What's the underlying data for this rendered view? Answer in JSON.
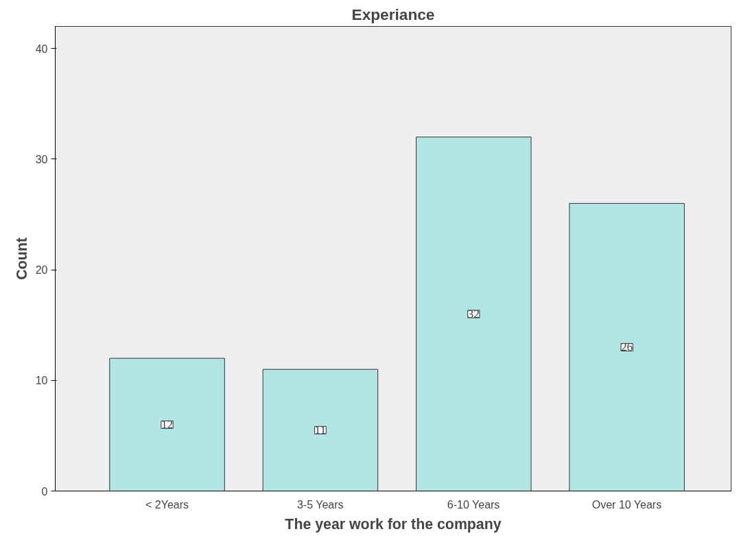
{
  "chart_data": {
    "type": "bar",
    "title": "Experiance",
    "xlabel": "The year work for the company",
    "ylabel": "Count",
    "categories": [
      "< 2Years",
      "3-5 Years",
      "6-10 Years",
      "Over 10 Years"
    ],
    "values": [
      12,
      11,
      32,
      26
    ],
    "color": "#b3e4e6",
    "ylim": [
      0,
      42
    ],
    "yticks": [
      0,
      10,
      20,
      30,
      40
    ],
    "grid": false,
    "data_labels": true
  }
}
